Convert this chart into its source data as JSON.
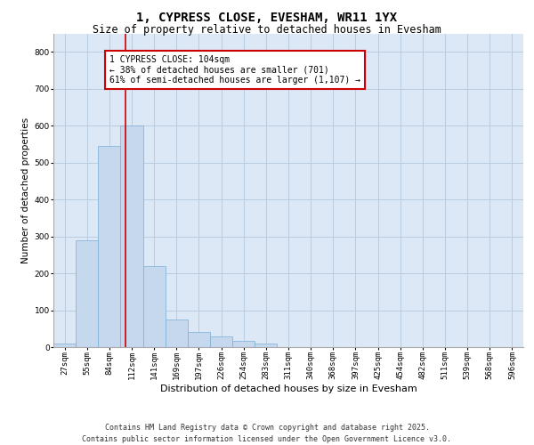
{
  "title": "1, CYPRESS CLOSE, EVESHAM, WR11 1YX",
  "subtitle": "Size of property relative to detached houses in Evesham",
  "xlabel": "Distribution of detached houses by size in Evesham",
  "ylabel": "Number of detached properties",
  "bar_color": "#c5d8ee",
  "bar_edge_color": "#7aadd4",
  "grid_color": "#b8cce0",
  "background_color": "#dce8f5",
  "annotation_box_color": "#cc0000",
  "vline_color": "#cc0000",
  "categories": [
    "27sqm",
    "55sqm",
    "84sqm",
    "112sqm",
    "141sqm",
    "169sqm",
    "197sqm",
    "226sqm",
    "254sqm",
    "283sqm",
    "311sqm",
    "340sqm",
    "368sqm",
    "397sqm",
    "425sqm",
    "454sqm",
    "482sqm",
    "511sqm",
    "539sqm",
    "568sqm",
    "596sqm"
  ],
  "values": [
    10,
    290,
    545,
    600,
    220,
    75,
    40,
    30,
    16,
    10,
    0,
    0,
    0,
    0,
    0,
    0,
    0,
    0,
    0,
    0,
    0
  ],
  "ylim": [
    0,
    850
  ],
  "yticks": [
    0,
    100,
    200,
    300,
    400,
    500,
    600,
    700,
    800
  ],
  "property_label": "1 CYPRESS CLOSE: 104sqm",
  "pct_smaller": "38% of detached houses are smaller (701)",
  "pct_larger": "61% of semi-detached houses are larger (1,107)",
  "vline_position": 2.72,
  "footer": "Contains HM Land Registry data © Crown copyright and database right 2025.\nContains public sector information licensed under the Open Government Licence v3.0.",
  "title_fontsize": 10,
  "subtitle_fontsize": 8.5,
  "xlabel_fontsize": 8,
  "ylabel_fontsize": 7.5,
  "tick_fontsize": 6.5,
  "annotation_fontsize": 7,
  "footer_fontsize": 6
}
